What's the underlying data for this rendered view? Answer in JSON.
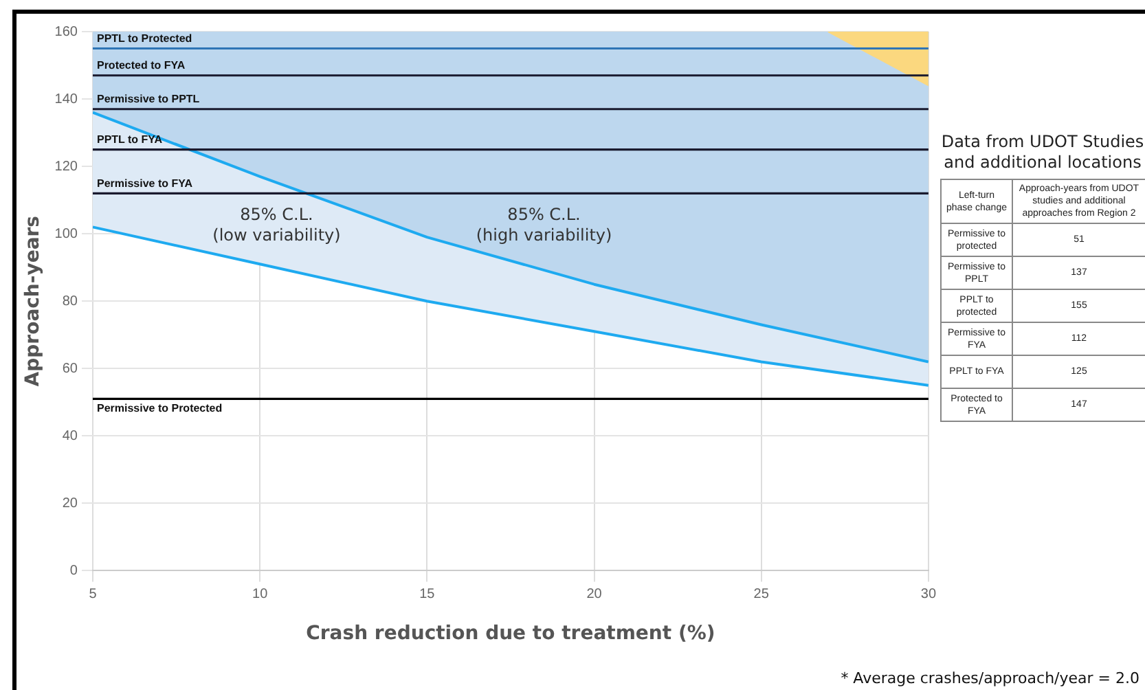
{
  "chart_data": [
    {
      "type": "line",
      "xlabel": "Crash reduction due to treatment (%)",
      "ylabel": "Approach-years",
      "x": [
        5,
        10,
        15,
        20,
        25,
        30
      ],
      "series": [
        {
          "type": "line",
          "color": "#1eaaf0",
          "values": [
            102,
            91,
            80,
            71,
            62,
            55
          ],
          "lower": [
            102,
            91,
            80,
            71,
            62,
            55
          ],
          "upper": [
            136,
            117,
            99,
            85,
            73,
            62
          ]
        },
        {
          "type": "line",
          "color": "#1eaaf0",
          "values": [
            136,
            117,
            99,
            85,
            73,
            62
          ],
          "lower": [
            136,
            117,
            99,
            85,
            73,
            62
          ],
          "upper": [
            160,
            160,
            160,
            160,
            160,
            160
          ]
        },
        {
          "type": "area",
          "color": "#fbd87f",
          "x": [
            27,
            30
          ],
          "values": [
            160,
            144
          ]
        }
      ],
      "xlim": [
        5,
        30
      ],
      "xticks": [
        5,
        10,
        15,
        20,
        25,
        30
      ],
      "ylim": [
        0,
        160
      ],
      "yticks": [
        0,
        20,
        40,
        60,
        80,
        100,
        120,
        140,
        160
      ],
      "grid": true,
      "marker": "none",
      "line_style": "solid",
      "ref_lines": [
        {
          "axis": "y",
          "value": 155,
          "label": "PPTL to Protected",
          "color": "#2e75b6"
        },
        {
          "axis": "y",
          "value": 147,
          "label": "Protected to FYA",
          "color": "#1a1a2e"
        },
        {
          "axis": "y",
          "value": 137,
          "label": "Permissive to PPTL",
          "color": "#1a1a2e"
        },
        {
          "axis": "y",
          "value": 125,
          "label": "PPTL to FYA",
          "color": "#1a1a2e"
        },
        {
          "axis": "y",
          "value": 112,
          "label": "Permissive to FYA",
          "color": "#1a1a2e"
        },
        {
          "axis": "y",
          "value": 51,
          "label": "Permissive to Protected",
          "color": "#000000"
        }
      ],
      "annotations": [
        "85% C.L.\n(low variability)",
        "85% C.L.\n(high variability)",
        "* Average crashes/approach/year = 2.0"
      ]
    },
    {
      "type": "other",
      "title": "Data from UDOT Studies and additional locations",
      "annotations": [
        "Left-turn phase change",
        "Approach-years from UDOT studies and additional approaches from Region 2"
      ],
      "categories": [
        "Permissive to protected",
        "Permissive to PPLT",
        "PPLT to protected",
        "Permissive to FYA",
        "PPLT to FYA",
        "Protected to FYA"
      ],
      "values": [
        51,
        137,
        155,
        112,
        125,
        147
      ],
      "data_labels": true
    }
  ]
}
